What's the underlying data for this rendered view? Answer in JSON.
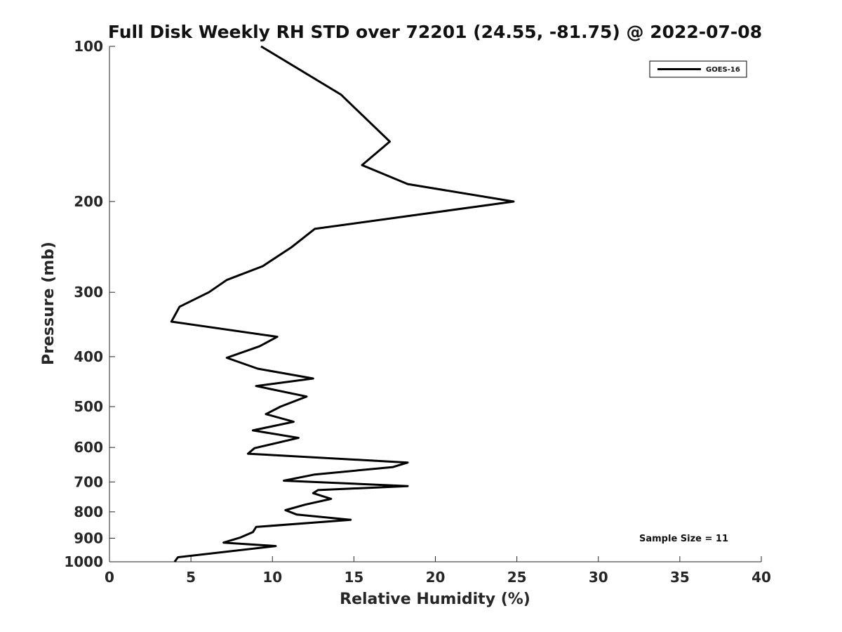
{
  "chart_data": {
    "type": "line",
    "title": "Full Disk Weekly RH STD over 72201 (24.55, -81.75) @ 2022-07-08",
    "xlabel": "Relative Humidity (%)",
    "ylabel": "Pressure (mb)",
    "xlim": [
      0,
      40
    ],
    "ylim": [
      100,
      1000
    ],
    "y_scale": "log",
    "y_inverted": true,
    "x_ticks": [
      "0",
      "5",
      "10",
      "15",
      "20",
      "25",
      "30",
      "35",
      "40"
    ],
    "y_ticks": [
      "100",
      "200",
      "300",
      "400",
      "500",
      "600",
      "700",
      "800",
      "900",
      "1000"
    ],
    "legend_position": "top-right",
    "grid": false,
    "annotation": "Sample Size = 11",
    "series": [
      {
        "name": "GOES-16",
        "color": "#000000",
        "points": [
          [
            9.3,
            100
          ],
          [
            14.2,
            124
          ],
          [
            17.2,
            153
          ],
          [
            15.5,
            170
          ],
          [
            18.3,
            185
          ],
          [
            24.8,
            200
          ],
          [
            12.6,
            226
          ],
          [
            11.2,
            245
          ],
          [
            9.4,
            267
          ],
          [
            7.2,
            284
          ],
          [
            6.1,
            300
          ],
          [
            4.3,
            320
          ],
          [
            3.8,
            342
          ],
          [
            10.3,
            366
          ],
          [
            9.2,
            382
          ],
          [
            7.2,
            402
          ],
          [
            9.1,
            422
          ],
          [
            12.5,
            441
          ],
          [
            9.0,
            456
          ],
          [
            12.1,
            478
          ],
          [
            10.5,
            500
          ],
          [
            9.6,
            517
          ],
          [
            11.3,
            535
          ],
          [
            8.8,
            556
          ],
          [
            11.6,
            575
          ],
          [
            8.9,
            602
          ],
          [
            8.5,
            617
          ],
          [
            18.3,
            642
          ],
          [
            17.4,
            655
          ],
          [
            12.6,
            677
          ],
          [
            10.7,
            696
          ],
          [
            18.3,
            713
          ],
          [
            12.8,
            726
          ],
          [
            12.5,
            736
          ],
          [
            13.6,
            755
          ],
          [
            12.0,
            775
          ],
          [
            10.8,
            794
          ],
          [
            11.5,
            810
          ],
          [
            14.8,
            829
          ],
          [
            9.0,
            856
          ],
          [
            8.8,
            876
          ],
          [
            8.0,
            898
          ],
          [
            7.0,
            918
          ],
          [
            10.2,
            932
          ],
          [
            4.2,
            980
          ],
          [
            4.0,
            1000
          ]
        ]
      }
    ]
  }
}
